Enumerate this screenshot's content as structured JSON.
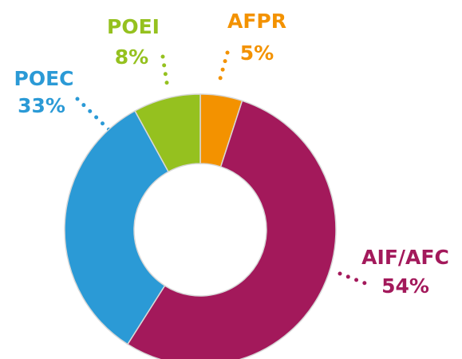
{
  "chart_data": {
    "type": "donut",
    "categories": [
      "AFPR",
      "AIF/AFC",
      "POEC",
      "POEI"
    ],
    "values": [
      5,
      54,
      33,
      8
    ],
    "value_labels": [
      "5%",
      "54%",
      "33%",
      "8%"
    ],
    "colors": [
      "#f39200",
      "#a3195b",
      "#2b9ad6",
      "#95c11f"
    ]
  }
}
